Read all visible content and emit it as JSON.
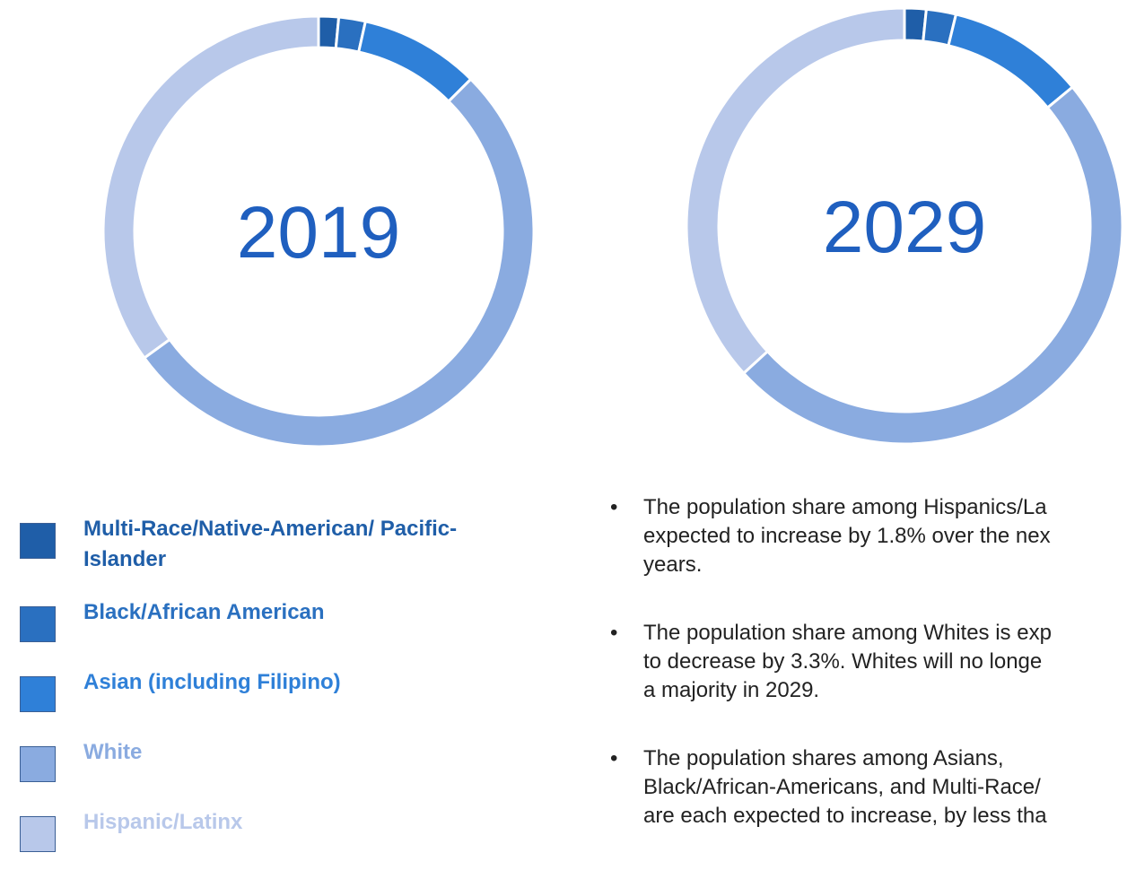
{
  "chart_data": [
    {
      "type": "donut",
      "title": "2019",
      "categories": [
        "Multi-Race/Native-American/ Pacific-Islander",
        "Black/African American",
        "Asian (including Filipino)",
        "White",
        "Hispanic/Latinx"
      ],
      "values": [
        1.5,
        2.0,
        9.0,
        52.5,
        35.0
      ],
      "colors": [
        "#1f5ea8",
        "#2a70c0",
        "#2f80d8",
        "#8aabe0",
        "#b8c8ea"
      ]
    },
    {
      "type": "donut",
      "title": "2029",
      "values": [
        1.6,
        2.2,
        10.2,
        49.2,
        36.8
      ]
    }
  ],
  "bullets": [
    [
      "The population share among Hispanics/La",
      "expected to increase by 1.8% over the nex",
      "years."
    ],
    [
      "The population share among Whites is exp",
      "to decrease by 3.3%.  Whites will no longe",
      "a majority in 2029."
    ],
    [
      "The population shares among Asians,",
      "Black/African-Americans, and Multi-Race/",
      "are each expected to increase, by less tha"
    ]
  ]
}
